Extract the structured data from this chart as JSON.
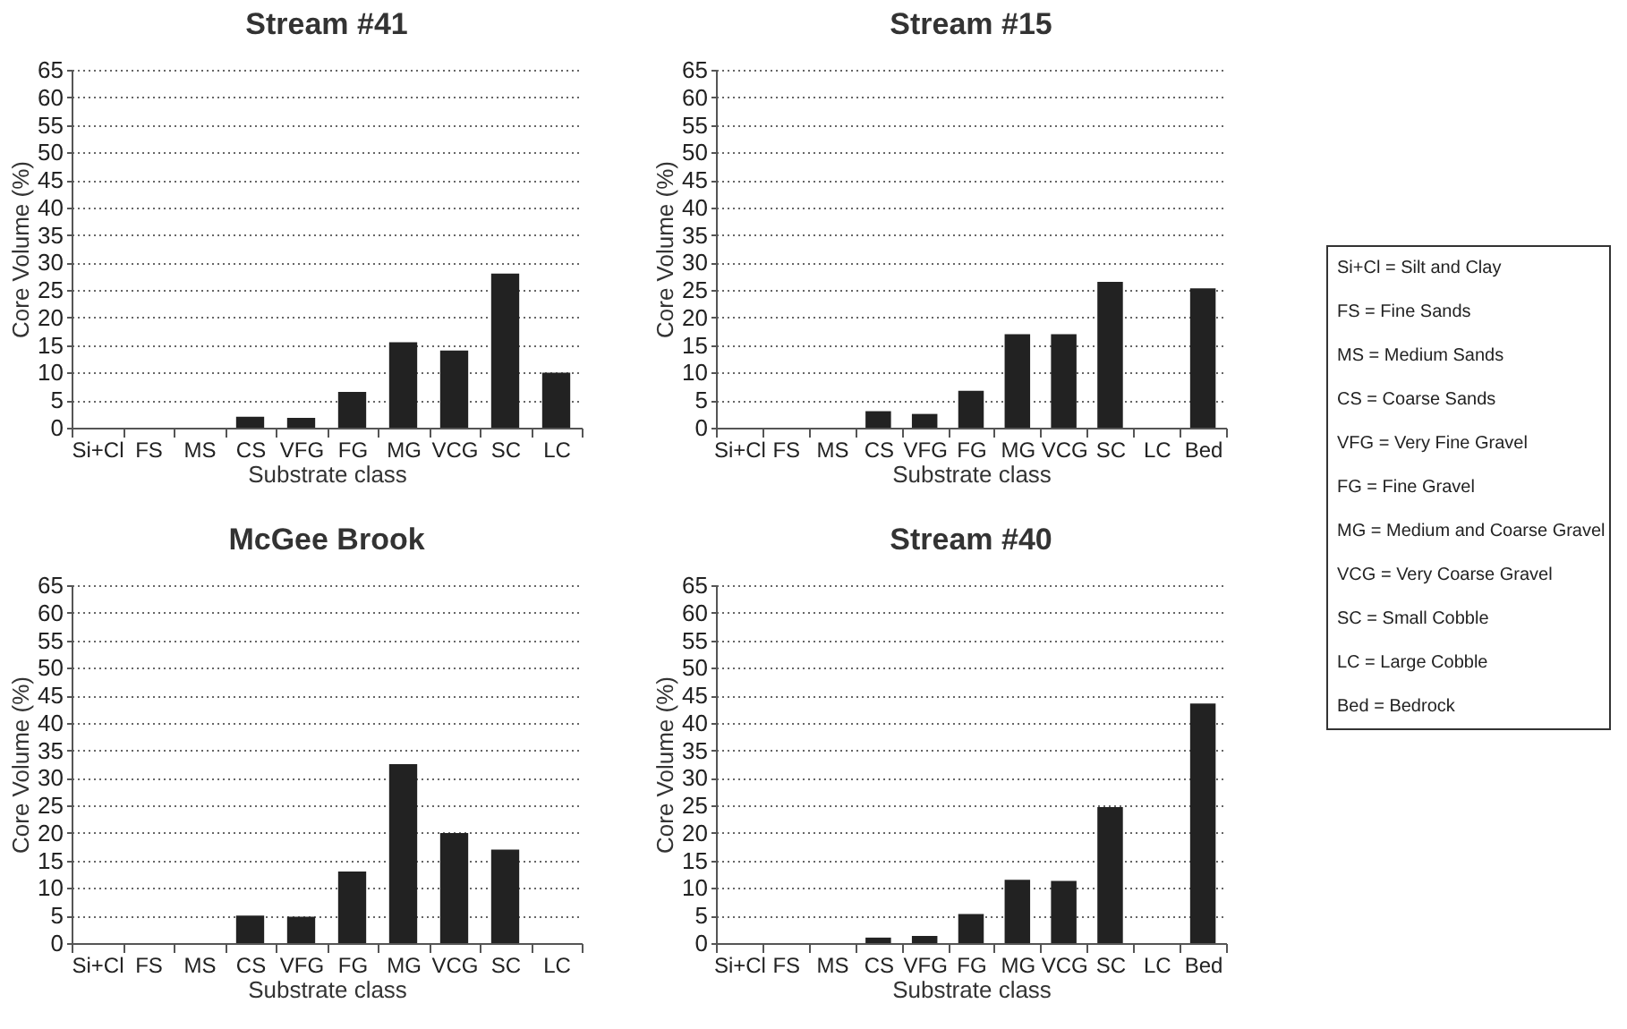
{
  "chart_data": [
    {
      "type": "bar",
      "title": "Stream #41",
      "xlabel": "Substrate class",
      "ylabel": "Core Volume (%)",
      "categories": [
        "Si+Cl",
        "FS",
        "MS",
        "CS",
        "VFG",
        "FG",
        "MG",
        "VCG",
        "SC",
        "LC"
      ],
      "values": [
        0,
        0,
        null,
        2,
        1.8,
        6.5,
        15.5,
        14,
        28,
        10
      ],
      "color": "#222222",
      "ylim": [
        0,
        65
      ],
      "yticks": [
        0,
        5,
        10,
        15,
        20,
        25,
        30,
        35,
        40,
        45,
        50,
        55,
        60,
        65
      ],
      "grid": "y"
    },
    {
      "type": "bar",
      "title": "Stream #15",
      "xlabel": "Substrate class",
      "ylabel": "Core Volume (%)",
      "categories": [
        "Si+Cl",
        "FS",
        "MS",
        "CS",
        "VFG",
        "FG",
        "MG",
        "VCG",
        "SC",
        "LC",
        "Bed"
      ],
      "values": [
        0,
        null,
        null,
        3,
        2.5,
        6.7,
        17,
        17,
        26.5,
        0,
        25.3
      ],
      "color": "#222222",
      "ylim": [
        0,
        65
      ],
      "yticks": [
        0,
        5,
        10,
        15,
        20,
        25,
        30,
        35,
        40,
        45,
        50,
        55,
        60,
        65
      ],
      "grid": "y"
    },
    {
      "type": "bar",
      "title": "McGee Brook",
      "xlabel": "Substrate class",
      "ylabel": "Core Volume (%)",
      "categories": [
        "Si+Cl",
        "FS",
        "MS",
        "CS",
        "VFG",
        "FG",
        "MG",
        "VCG",
        "SC",
        "LC"
      ],
      "values": [
        0,
        0,
        null,
        5,
        4.8,
        13,
        32.5,
        20,
        17,
        0
      ],
      "color": "#222222",
      "ylim": [
        0,
        65
      ],
      "yticks": [
        0,
        5,
        10,
        15,
        20,
        25,
        30,
        35,
        40,
        45,
        50,
        55,
        60,
        65
      ],
      "grid": "y"
    },
    {
      "type": "bar",
      "title": "Stream #40",
      "xlabel": "Substrate class",
      "ylabel": "Core Volume (%)",
      "categories": [
        "Si+Cl",
        "FS",
        "MS",
        "CS",
        "VFG",
        "FG",
        "MG",
        "VCG",
        "SC",
        "LC",
        "Bed"
      ],
      "values": [
        0,
        0,
        0,
        1,
        1.3,
        5.3,
        11.5,
        11.3,
        24.7,
        0,
        43.5
      ],
      "color": "#222222",
      "ylim": [
        0,
        65
      ],
      "yticks": [
        0,
        5,
        10,
        15,
        20,
        25,
        30,
        35,
        40,
        45,
        50,
        55,
        60,
        65
      ],
      "grid": "y"
    },
    {
      "type": "other",
      "annotations": [
        "Si+Cl = Silt and Clay",
        "FS = Fine Sands",
        "MS = Medium Sands",
        "CS = Coarse Sands",
        "VFG = Very Fine Gravel",
        "FG = Fine Gravel",
        "MG = Medium and Coarse Gravel",
        "VCG = Very Coarse Gravel",
        "SC = Small Cobble",
        "LC = Large Cobble",
        "Bed = Bedrock"
      ]
    }
  ]
}
